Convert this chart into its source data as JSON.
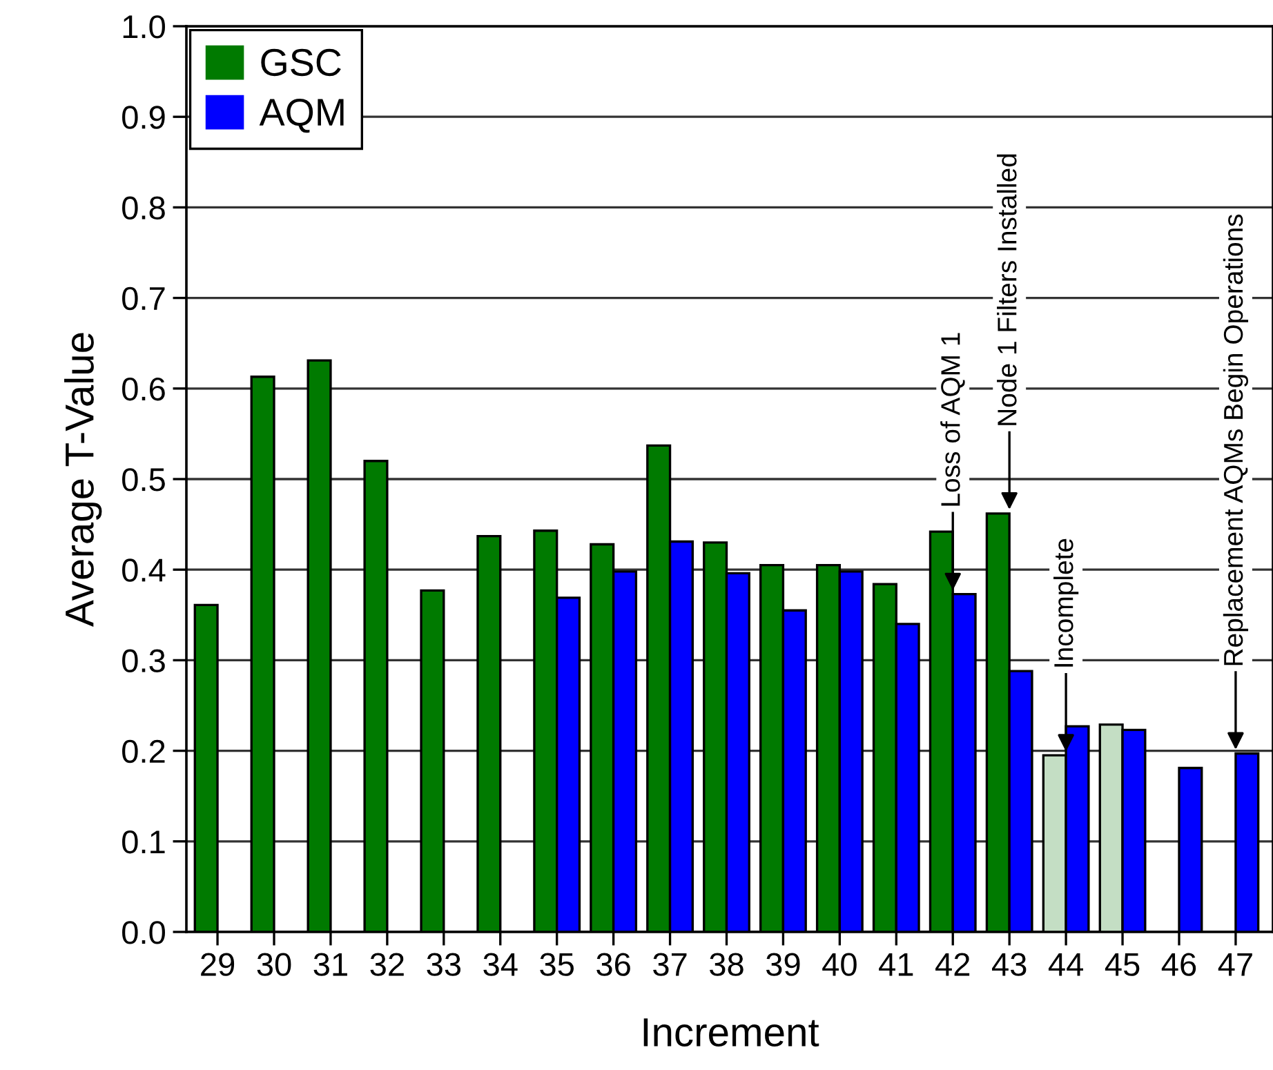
{
  "chart_data": {
    "type": "bar",
    "xlabel": "Increment",
    "ylabel": "Average T-Value",
    "categories": [
      "29",
      "30",
      "31",
      "32",
      "33",
      "34",
      "35",
      "36",
      "37",
      "38",
      "39",
      "40",
      "41",
      "42",
      "43",
      "44",
      "45",
      "46",
      "47"
    ],
    "series": [
      {
        "name": "GSC",
        "color": "#007a00",
        "colors": [
          "#007a00",
          "#007a00",
          "#007a00",
          "#007a00",
          "#007a00",
          "#007a00",
          "#007a00",
          "#007a00",
          "#007a00",
          "#007a00",
          "#007a00",
          "#007a00",
          "#007a00",
          "#007a00",
          "#007a00",
          "#c4dec4",
          "#c4dec4",
          "#007a00",
          "#007a00"
        ],
        "values": [
          0.361,
          0.613,
          0.631,
          0.52,
          0.377,
          0.437,
          0.443,
          0.428,
          0.537,
          0.43,
          0.405,
          0.405,
          0.384,
          0.442,
          0.462,
          0.195,
          0.229,
          null,
          null
        ]
      },
      {
        "name": "AQM",
        "color": "#0000ff",
        "values": [
          null,
          null,
          null,
          null,
          null,
          null,
          0.369,
          0.398,
          0.431,
          0.396,
          0.355,
          0.398,
          0.34,
          0.373,
          0.288,
          0.227,
          0.223,
          0.181,
          0.197
        ]
      }
    ],
    "ylim": [
      0,
      1.0
    ],
    "yticks": [
      "0.0",
      0.1,
      0.2,
      0.3,
      0.4,
      0.5,
      0.6,
      0.7,
      0.8,
      0.9,
      "1.0"
    ],
    "grid": "y",
    "legend": "top left",
    "annotations": [
      {
        "text": "Loss of AQM 1",
        "x": "42",
        "y": 0.373
      },
      {
        "text": "Node 1 Filters Installed",
        "x": "43",
        "y": 0.462
      },
      {
        "text": "Incomplete",
        "x": "44",
        "y": 0.195
      },
      {
        "text": "Replacement AQMs Begin Operations",
        "x": "47",
        "y": 0.197
      }
    ]
  }
}
